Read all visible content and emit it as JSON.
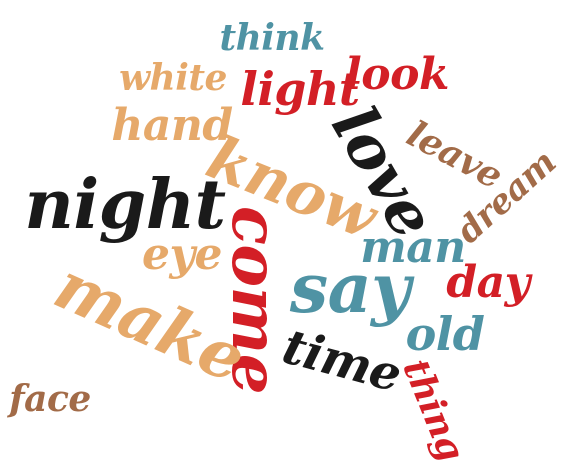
{
  "palette": {
    "tan": "#e6a96a",
    "red": "#d31f26",
    "teal": "#4f93a4",
    "black": "#1a1a1a",
    "brown": "#a26b48"
  },
  "words": [
    {
      "id": "think",
      "text": "think",
      "color": "teal",
      "weight": 2,
      "angle": 0
    },
    {
      "id": "white",
      "text": "white",
      "color": "tan",
      "weight": 2,
      "angle": 0
    },
    {
      "id": "light",
      "text": "light",
      "color": "red",
      "weight": 3,
      "angle": 0
    },
    {
      "id": "look",
      "text": "look",
      "color": "red",
      "weight": 3,
      "angle": 0
    },
    {
      "id": "hand",
      "text": "hand",
      "color": "tan",
      "weight": 3,
      "angle": 0
    },
    {
      "id": "know",
      "text": "know",
      "color": "tan",
      "weight": 4,
      "angle": 22
    },
    {
      "id": "love",
      "text": "love",
      "color": "black",
      "weight": 4,
      "angle": 60
    },
    {
      "id": "leave",
      "text": "leave",
      "color": "brown",
      "weight": 2,
      "angle": 28
    },
    {
      "id": "dream",
      "text": "dream",
      "color": "brown",
      "weight": 2,
      "angle": -42
    },
    {
      "id": "night",
      "text": "night",
      "color": "black",
      "weight": 5,
      "angle": 0
    },
    {
      "id": "eye",
      "text": "eye",
      "color": "tan",
      "weight": 3,
      "angle": 0
    },
    {
      "id": "come",
      "text": "come",
      "color": "red",
      "weight": 5,
      "angle": 90
    },
    {
      "id": "man",
      "text": "man",
      "color": "teal",
      "weight": 3,
      "angle": 0
    },
    {
      "id": "day",
      "text": "day",
      "color": "red",
      "weight": 3,
      "angle": 0
    },
    {
      "id": "make",
      "text": "make",
      "color": "tan",
      "weight": 5,
      "angle": 24
    },
    {
      "id": "say",
      "text": "say",
      "color": "teal",
      "weight": 5,
      "angle": 0
    },
    {
      "id": "old",
      "text": "old",
      "color": "teal",
      "weight": 3,
      "angle": 0
    },
    {
      "id": "time",
      "text": "time",
      "color": "black",
      "weight": 3,
      "angle": 15
    },
    {
      "id": "thing",
      "text": "thing",
      "color": "red",
      "weight": 2,
      "angle": 68
    },
    {
      "id": "face",
      "text": "face",
      "color": "brown",
      "weight": 2,
      "angle": 0
    }
  ]
}
